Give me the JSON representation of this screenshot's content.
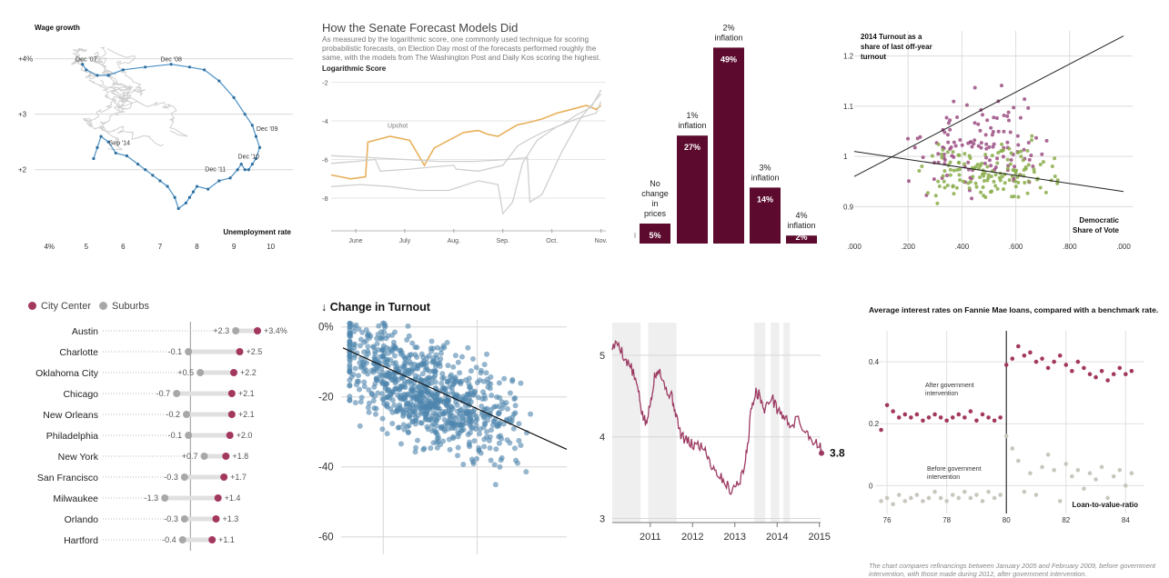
{
  "colors": {
    "blue": "#4a8fc4",
    "gray_line": "#cfcfcf",
    "orange": "#e8b05a",
    "maroon": "#5c0b2e",
    "purple": "#9b4d83",
    "green": "#8aad4a",
    "crimson": "#a3385f",
    "grey_dot": "#a8a8a8",
    "scatter_blue": "#4f86ad",
    "wine": "#9c3a63",
    "light_dot": "#c9c7bd",
    "shade": "#efefef",
    "grid": "#e3e3e3"
  },
  "panels": {
    "p2": {
      "title": "How the Senate Forecast Models Did",
      "subtitle": "As measured by the logarithmic score, one commonly used technique for scoring probabilistic forecasts, on Election Day most of the forecasts performed roughly the same, with the models from The Washington Post and Daily Kos scoring the highest.",
      "ylabel": "Logarithmic Score"
    },
    "p5": {
      "legend_city": "City Center",
      "legend_suburbs": "Suburbs"
    },
    "p8": {
      "title": "Average interest rates on Fannie Mae loans, compared with a benchmark rate.",
      "note": "The chart compares refinancings between January 2005 and February 2009, before government intervention, with those made during 2012, after government intervention."
    }
  },
  "chart_data": [
    {
      "id": "wage-curve",
      "type": "line",
      "ylabel": "Wage growth",
      "xlabel": "Unemployment rate",
      "xlim": [
        3.6,
        10.6
      ],
      "ylim": [
        0.8,
        4.6
      ],
      "x_ticks": [
        "4%",
        "5",
        "6",
        "7",
        "8",
        "9",
        "10"
      ],
      "y_ticks": [
        "+4%",
        "+3",
        "+2"
      ],
      "highlight_series": {
        "name": "",
        "points": [
          [
            4.9,
            3.9
          ],
          [
            5.0,
            3.8
          ],
          [
            5.3,
            3.7
          ],
          [
            5.6,
            3.7
          ],
          [
            6.0,
            3.8
          ],
          [
            6.6,
            3.85
          ],
          [
            7.3,
            3.9
          ],
          [
            7.8,
            3.85
          ],
          [
            8.2,
            3.8
          ],
          [
            8.6,
            3.6
          ],
          [
            9.0,
            3.3
          ],
          [
            9.3,
            3.0
          ],
          [
            9.5,
            2.8
          ],
          [
            9.6,
            2.6
          ],
          [
            9.7,
            2.4
          ],
          [
            9.6,
            2.2
          ],
          [
            9.5,
            2.1
          ],
          [
            9.4,
            2.0
          ],
          [
            9.3,
            2.0
          ],
          [
            9.2,
            2.1
          ],
          [
            9.1,
            2.0
          ],
          [
            8.9,
            1.85
          ],
          [
            8.6,
            1.8
          ],
          [
            8.3,
            1.65
          ],
          [
            8.0,
            1.7
          ],
          [
            7.9,
            1.6
          ],
          [
            7.8,
            1.5
          ],
          [
            7.7,
            1.4
          ],
          [
            7.5,
            1.3
          ],
          [
            7.4,
            1.5
          ],
          [
            7.2,
            1.7
          ],
          [
            7.0,
            1.8
          ],
          [
            6.8,
            1.9
          ],
          [
            6.6,
            2.0
          ],
          [
            6.4,
            2.1
          ],
          [
            6.1,
            2.25
          ],
          [
            5.8,
            2.3
          ],
          [
            5.6,
            2.5
          ],
          [
            5.4,
            2.6
          ],
          [
            5.3,
            2.4
          ],
          [
            5.2,
            2.2
          ]
        ]
      },
      "background_series": 7,
      "annotations": [
        {
          "text": "Dec '07",
          "x": 5.0,
          "y": 3.9
        },
        {
          "text": "Dec '08",
          "x": 7.3,
          "y": 3.9
        },
        {
          "text": "Dec '09",
          "x": 9.9,
          "y": 2.65
        },
        {
          "text": "Sep '14",
          "x": 5.9,
          "y": 2.4
        },
        {
          "text": "Dec '10",
          "x": 9.4,
          "y": 2.15
        },
        {
          "text": "Dec '11",
          "x": 8.5,
          "y": 1.92
        }
      ]
    },
    {
      "id": "senate-log-score",
      "type": "line",
      "title": "How the Senate Forecast Models Did",
      "ylabel": "Logarithmic Score",
      "x_ticks": [
        "June",
        "July",
        "Aug.",
        "Sep.",
        "Oct.",
        "Nov."
      ],
      "xlim": [
        0,
        5.6
      ],
      "ylim": [
        -9.6,
        -1.6
      ],
      "y_ticks": [
        -2,
        -4,
        -6,
        -8
      ],
      "series": [
        {
          "name": "Upshot",
          "color": "orange",
          "x": [
            0,
            0.4,
            0.7,
            0.75,
            1.2,
            1.6,
            1.9,
            2.1,
            2.4,
            2.7,
            3.0,
            3.2,
            3.4,
            3.6,
            3.8,
            4.0,
            4.3,
            4.6,
            4.9,
            5.2,
            5.4,
            5.5
          ],
          "y": [
            -6.8,
            -7.0,
            -6.9,
            -5.1,
            -4.8,
            -5.0,
            -6.3,
            -5.4,
            -5.0,
            -4.6,
            -4.5,
            -4.7,
            -4.8,
            -4.5,
            -4.2,
            -4.1,
            -3.9,
            -3.6,
            -3.4,
            -3.2,
            -3.4,
            -3.2
          ]
        },
        {
          "name": "",
          "color": "gray",
          "x": [
            0,
            0.5,
            0.9,
            1.0,
            1.6,
            2.0,
            2.5,
            2.55,
            3.0,
            3.5,
            3.8,
            4.0,
            4.3,
            4.7,
            5.0,
            5.3,
            5.5
          ],
          "y": [
            -6.2,
            -6.1,
            -6.0,
            -6.6,
            -6.5,
            -6.4,
            -6.3,
            -6.5,
            -6.6,
            -6.3,
            -5.3,
            -5.0,
            -4.6,
            -4.2,
            -3.7,
            -3.3,
            -2.4
          ]
        },
        {
          "name": "",
          "color": "gray",
          "x": [
            0,
            0.6,
            1.2,
            1.8,
            2.4,
            3.0,
            3.4,
            3.5,
            3.7,
            3.9,
            4.2,
            4.6,
            5.0,
            5.4,
            5.5
          ],
          "y": [
            -7.4,
            -7.3,
            -7.4,
            -7.6,
            -7.6,
            -7.1,
            -7.3,
            -8.8,
            -8.2,
            -6.2,
            -5.0,
            -4.3,
            -3.9,
            -3.6,
            -3.0
          ]
        },
        {
          "name": "",
          "color": "gray",
          "x": [
            0,
            0.8,
            1.5,
            2.2,
            2.9,
            3.6,
            4.0,
            4.05,
            4.3,
            4.7,
            5.1,
            5.5
          ],
          "y": [
            -5.8,
            -5.9,
            -6.0,
            -6.1,
            -6.1,
            -6.0,
            -5.9,
            -8.2,
            -7.8,
            -5.6,
            -3.8,
            -2.6
          ]
        }
      ]
    },
    {
      "id": "inflation-bars",
      "type": "bar",
      "categories": [
        "No change in prices",
        "1% inflation",
        "2% inflation",
        "3% inflation",
        "4% inflation"
      ],
      "values": [
        5,
        27,
        49,
        14,
        2
      ],
      "value_labels": [
        "5%",
        "27%",
        "49%",
        "14%",
        "2%"
      ],
      "ylim": [
        0,
        50
      ]
    },
    {
      "id": "turnout-scatter",
      "type": "scatter",
      "ylabel": "2014 Turnout as a share of last off-year turnout",
      "xlabel": "Democratic Share of Vote",
      "x_ticks": [
        ".000",
        ".200",
        ".400",
        ".600",
        ".800",
        ".000"
      ],
      "xlim": [
        0,
        1.0
      ],
      "ylim": [
        0.83,
        1.25
      ],
      "y_ticks": [
        1.2,
        1.1,
        1,
        0.9
      ],
      "y_tick_labels": [
        "1.2",
        "1.1",
        "1",
        "0.9"
      ],
      "lines": [
        {
          "x": [
            0,
            1.0
          ],
          "y": [
            0.96,
            1.24
          ]
        },
        {
          "x": [
            0,
            1.0
          ],
          "y": [
            1.01,
            0.93
          ]
        }
      ],
      "series": [
        {
          "name": "",
          "color": "purple",
          "count": 120
        },
        {
          "name": "",
          "color": "green",
          "count": 140
        }
      ]
    },
    {
      "id": "city-suburbs-dots",
      "type": "dot",
      "categories": [
        "Austin",
        "Charlotte",
        "Oklahoma City",
        "Chicago",
        "New Orleans",
        "Philadelphia",
        "New York",
        "San Francisco",
        "Milwaukee",
        "Orlando",
        "Hartford"
      ],
      "city_center": [
        3.4,
        2.5,
        2.2,
        2.1,
        2.1,
        2.0,
        1.8,
        1.7,
        1.4,
        1.3,
        1.1
      ],
      "suburbs": [
        2.3,
        -0.1,
        0.5,
        -0.7,
        -0.2,
        -0.1,
        0.7,
        -0.3,
        -1.3,
        -0.3,
        -0.4
      ],
      "city_labels": [
        "+3.4%",
        "+2.5",
        "+2.2",
        "+2.1",
        "+2.1",
        "+2.0",
        "+1.8",
        "+1.7",
        "+1.4",
        "+1.3",
        "+1.1"
      ],
      "suburb_labels": [
        "+2.3",
        "-0.1",
        "+0.5",
        "-0.7",
        "-0.2",
        "-0.1",
        "+0.7",
        "-0.3",
        "-1.3",
        "-0.3",
        "-0.4"
      ],
      "legend": [
        "City Center",
        "Suburbs"
      ]
    },
    {
      "id": "change-in-turnout",
      "type": "scatter",
      "title": "↓ Change in Turnout",
      "ylim": [
        -65,
        2
      ],
      "y_ticks": [
        0,
        -20,
        -40,
        -60
      ],
      "y_tick_labels": [
        "0%",
        "-20",
        "-40",
        "-60"
      ],
      "xlim": [
        0,
        1
      ],
      "trend": {
        "x": [
          0,
          1
        ],
        "y": [
          -6,
          -35
        ]
      },
      "series": [
        {
          "name": "",
          "color": "scatter_blue",
          "count": 900
        }
      ]
    },
    {
      "id": "rate-line",
      "type": "line",
      "x_ticks": [
        "2011",
        "2012",
        "2013",
        "2014",
        "2015"
      ],
      "xlim": [
        2010.1,
        2015.2
      ],
      "ylim": [
        2.95,
        5.4
      ],
      "y_ticks": [
        5,
        4,
        3
      ],
      "last_label": "3.8",
      "shaded_periods": [
        [
          2010.1,
          2010.77
        ],
        [
          2010.95,
          2011.62
        ],
        [
          2013.46,
          2013.72
        ],
        [
          2013.85,
          2014.05
        ],
        [
          2014.15,
          2014.3
        ]
      ],
      "series": [
        {
          "name": "",
          "color": "wine",
          "x": [
            2010.1,
            2010.25,
            2010.4,
            2010.55,
            2010.7,
            2010.8,
            2010.9,
            2011.0,
            2011.1,
            2011.2,
            2011.35,
            2011.5,
            2011.6,
            2011.7,
            2011.85,
            2012.0,
            2012.15,
            2012.3,
            2012.45,
            2012.6,
            2012.75,
            2012.9,
            2013.05,
            2013.2,
            2013.3,
            2013.4,
            2013.5,
            2013.6,
            2013.7,
            2013.85,
            2014.0,
            2014.15,
            2014.3,
            2014.5,
            2014.7,
            2014.85,
            2015.0,
            2015.05
          ],
          "y": [
            5.1,
            5.15,
            4.95,
            4.85,
            4.6,
            4.3,
            4.15,
            4.4,
            4.75,
            4.85,
            4.6,
            4.5,
            4.3,
            4.05,
            3.95,
            3.9,
            3.9,
            3.85,
            3.65,
            3.55,
            3.45,
            3.35,
            3.42,
            3.55,
            3.9,
            4.4,
            4.55,
            4.5,
            4.3,
            4.5,
            4.35,
            4.25,
            4.15,
            4.2,
            4.05,
            3.95,
            3.9,
            3.8
          ]
        }
      ]
    },
    {
      "id": "fannie-mae",
      "type": "scatter",
      "title": "Average interest rates on Fannie Mae loans, compared with a benchmark rate.",
      "xlabel": "Loan-to-value-ratio",
      "x_ticks": [
        76,
        78,
        80,
        82,
        84
      ],
      "xlim": [
        75.6,
        84.6
      ],
      "ylim": [
        -0.09,
        0.5
      ],
      "y_ticks": [
        0.4,
        0.2,
        0
      ],
      "y_tick_labels": [
        "0.4",
        "0.2",
        "0"
      ],
      "threshold_x": 80,
      "annotations": [
        "After government intervention",
        "Before government intervention"
      ],
      "series": [
        {
          "name": "After government intervention",
          "color": "crimson",
          "x": [
            75.8,
            76.0,
            76.2,
            76.4,
            76.6,
            76.8,
            77.0,
            77.2,
            77.4,
            77.6,
            77.8,
            78.0,
            78.2,
            78.4,
            78.6,
            78.8,
            79.0,
            79.2,
            79.4,
            79.6,
            79.8,
            80.0,
            80.2,
            80.4,
            80.6,
            80.8,
            81.0,
            81.2,
            81.4,
            81.6,
            81.8,
            82.0,
            82.2,
            82.4,
            82.6,
            82.8,
            83.0,
            83.2,
            83.4,
            83.6,
            83.8,
            84.0,
            84.2
          ],
          "y": [
            0.18,
            0.26,
            0.24,
            0.22,
            0.23,
            0.22,
            0.23,
            0.21,
            0.22,
            0.23,
            0.22,
            0.21,
            0.22,
            0.23,
            0.22,
            0.24,
            0.21,
            0.23,
            0.22,
            0.21,
            0.22,
            0.39,
            0.41,
            0.45,
            0.42,
            0.43,
            0.4,
            0.41,
            0.38,
            0.4,
            0.42,
            0.39,
            0.37,
            0.4,
            0.38,
            0.36,
            0.35,
            0.37,
            0.34,
            0.36,
            0.38,
            0.36,
            0.37
          ]
        },
        {
          "name": "Before government intervention",
          "color": "light_dot",
          "x": [
            75.8,
            76.0,
            76.2,
            76.4,
            76.6,
            76.8,
            77.0,
            77.2,
            77.4,
            77.6,
            77.8,
            78.0,
            78.2,
            78.4,
            78.6,
            78.8,
            79.0,
            79.2,
            79.4,
            79.6,
            79.8,
            80.0,
            80.2,
            80.4,
            80.6,
            80.8,
            81.0,
            81.2,
            81.4,
            81.6,
            81.8,
            82.0,
            82.2,
            82.4,
            82.6,
            82.8,
            83.0,
            83.2,
            83.4,
            83.6,
            83.8,
            84.0,
            84.2
          ],
          "y": [
            -0.05,
            -0.04,
            -0.06,
            -0.03,
            -0.05,
            -0.04,
            -0.03,
            -0.05,
            -0.04,
            -0.02,
            -0.04,
            -0.05,
            -0.03,
            -0.04,
            -0.02,
            -0.04,
            -0.03,
            -0.05,
            -0.02,
            -0.04,
            -0.03,
            0.16,
            0.12,
            0.08,
            -0.02,
            0.04,
            -0.03,
            0.06,
            0.1,
            0.05,
            -0.05,
            0.07,
            0.03,
            0.05,
            -0.01,
            0.04,
            0.02,
            0.06,
            -0.04,
            0.03,
            0.05,
            0.0,
            0.04
          ]
        }
      ]
    }
  ]
}
